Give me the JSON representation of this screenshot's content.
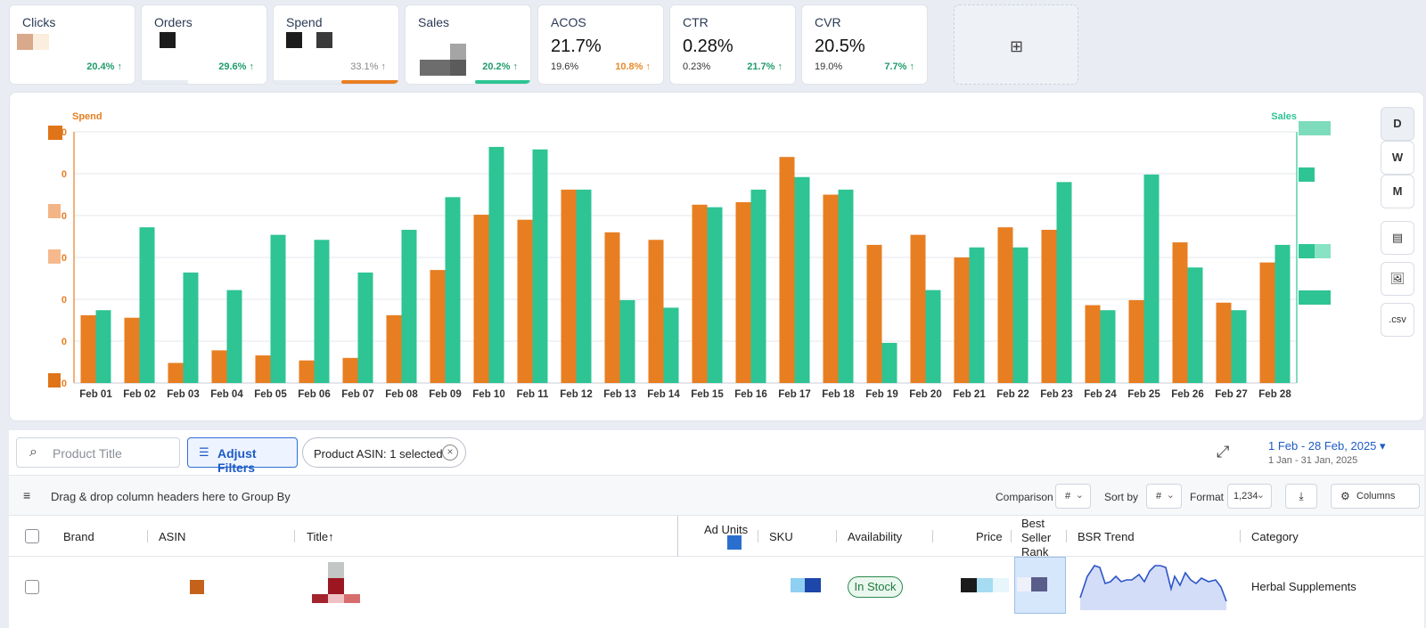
{
  "kpis": [
    {
      "title": "Clicks",
      "value": "",
      "prev": "",
      "delta": "20.4% ↑",
      "delta_color": "#1e9c6a"
    },
    {
      "title": "Orders",
      "value": "",
      "prev": "",
      "delta": "29.6% ↑",
      "delta_color": "#1e9c6a"
    },
    {
      "title": "Spend",
      "value": "",
      "prev": "",
      "delta": "33.1% ↑",
      "delta_color": "#888888",
      "bar_color": "#e87e22"
    },
    {
      "title": "Sales",
      "value": "",
      "prev": "",
      "delta": "20.2% ↑",
      "delta_color": "#1e9c6a",
      "bar_color": "#2ec494"
    },
    {
      "title": "ACOS",
      "value": "21.7%",
      "prev": "19.6%",
      "delta": "10.8% ↑",
      "delta_color": "#e88a2c"
    },
    {
      "title": "CTR",
      "value": "0.28%",
      "prev": "0.23%",
      "delta": "21.7% ↑",
      "delta_color": "#1e9c6a"
    },
    {
      "title": "CVR",
      "value": "20.5%",
      "prev": "19.0%",
      "delta": "7.7% ↑",
      "delta_color": "#1e9c6a"
    }
  ],
  "add_widget_icon": "chart-add-icon",
  "chart_data": {
    "type": "bar",
    "categories": [
      "Feb 01",
      "Feb 02",
      "Feb 03",
      "Feb 04",
      "Feb 05",
      "Feb 06",
      "Feb 07",
      "Feb 08",
      "Feb 09",
      "Feb 10",
      "Feb 11",
      "Feb 12",
      "Feb 13",
      "Feb 14",
      "Feb 15",
      "Feb 16",
      "Feb 17",
      "Feb 18",
      "Feb 19",
      "Feb 20",
      "Feb 21",
      "Feb 22",
      "Feb 23",
      "Feb 24",
      "Feb 25",
      "Feb 26",
      "Feb 27",
      "Feb 28"
    ],
    "series": [
      {
        "name": "Spend",
        "axis": "left",
        "color": "#e87e22",
        "values": [
          27,
          26,
          8,
          13,
          11,
          9,
          10,
          27,
          45,
          67,
          65,
          77,
          60,
          57,
          71,
          72,
          90,
          75,
          55,
          59,
          50,
          62,
          61,
          31,
          33,
          56,
          32,
          48
        ]
      },
      {
        "name": "Sales",
        "axis": "right",
        "color": "#2ec494",
        "values": [
          29,
          62,
          44,
          37,
          59,
          57,
          44,
          61,
          74,
          94,
          93,
          77,
          33,
          30,
          70,
          77,
          82,
          77,
          16,
          37,
          54,
          54,
          80,
          29,
          83,
          46,
          29,
          55
        ]
      }
    ],
    "ylabel_left": "Spend",
    "ylabel_right": "Sales",
    "ylim": [
      0,
      100
    ],
    "left_tick_labels": [
      "0",
      "0",
      "0",
      "0",
      "0",
      "0",
      "0"
    ],
    "grid": true
  },
  "interval_buttons": [
    "D",
    "W",
    "M"
  ],
  "tool_buttons": [
    {
      "icon": "table-icon",
      "glyph": "▤"
    },
    {
      "icon": "image-icon",
      "glyph": "🖼"
    },
    {
      "icon": "csv-icon",
      "glyph": ".csv"
    }
  ],
  "search": {
    "placeholder": "Product Title",
    "value": ""
  },
  "adjust_filters_label": "Adjust Filters",
  "filter_chip": {
    "label": "Product ASIN:",
    "value": "1 selected"
  },
  "date_range": {
    "current": "1 Feb - 28 Feb, 2025 ▾",
    "previous": "1 Jan - 31 Jan, 2025"
  },
  "group_by_text": "Drag & drop column headers here to Group By",
  "controls": {
    "comparison_label": "Comparison",
    "comparison_value": "#",
    "sort_label": "Sort by",
    "sort_value": "#",
    "format_label": "Format",
    "format_value": "1,234",
    "columns_label": "Columns"
  },
  "columns": [
    "Brand",
    "ASIN",
    "Title↑",
    "Ad Units",
    "SKU",
    "Availability",
    "Price",
    "Best Seller Rank",
    "BSR Trend",
    "Category"
  ],
  "row": {
    "availability": "In Stock",
    "category": "Herbal Supplements"
  }
}
